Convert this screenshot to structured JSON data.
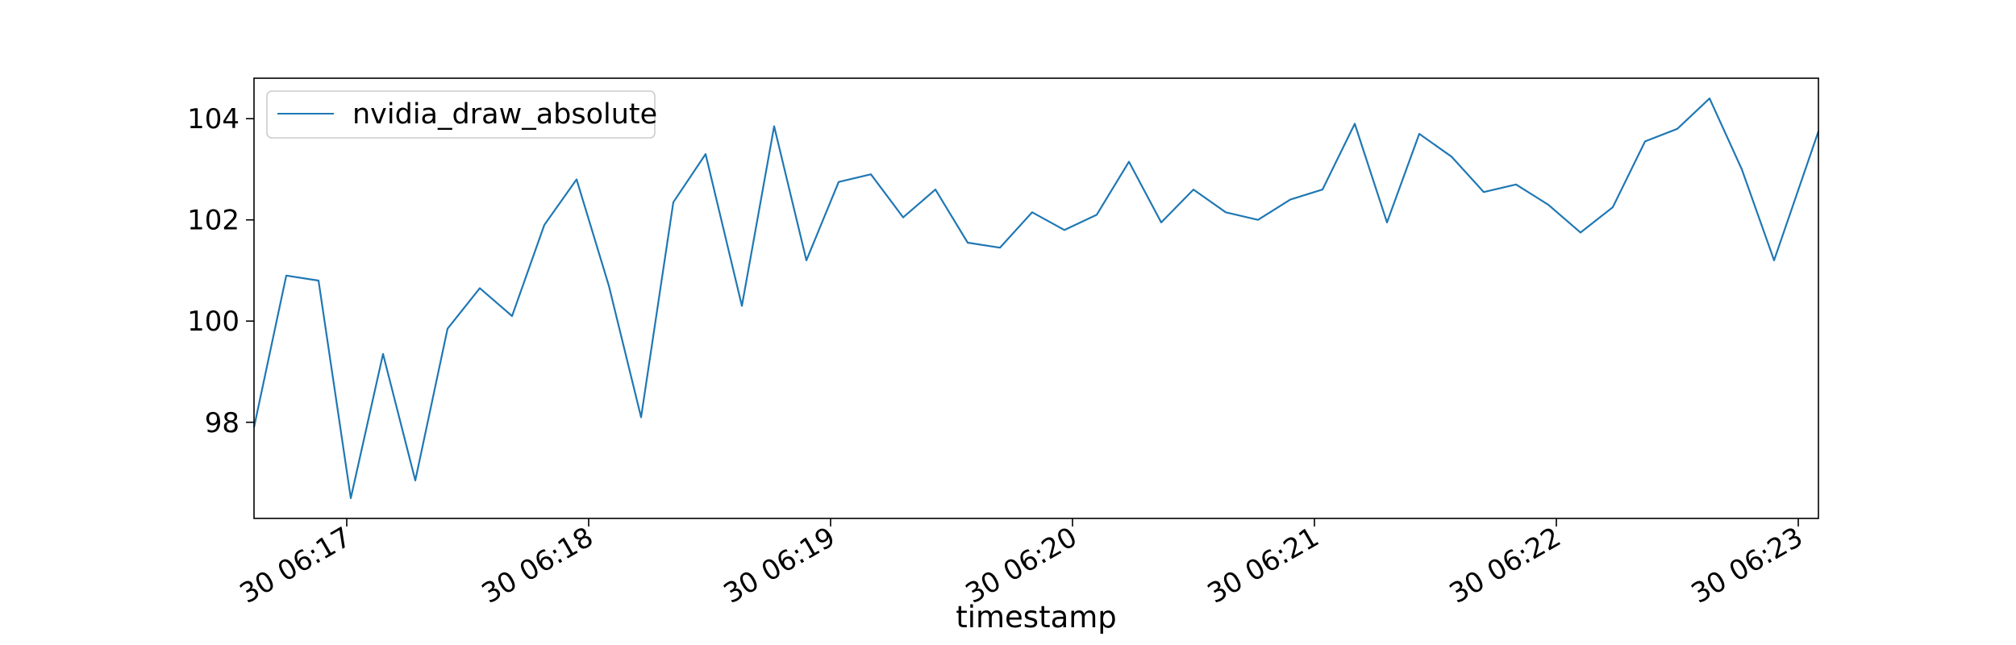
{
  "chart_data": {
    "type": "line",
    "title": "",
    "xlabel": "timestamp",
    "ylabel": "",
    "x_tick_labels": [
      "30 06:17",
      "30 06:18",
      "30 06:19",
      "30 06:20",
      "30 06:21",
      "30 06:22",
      "30 06:23"
    ],
    "x_ticks": [
      "06:17:00",
      "06:18:00",
      "06:19:00",
      "06:20:00",
      "06:21:00",
      "06:22:00",
      "06:23:00"
    ],
    "xlim": [
      "06:16:37",
      "06:23:05"
    ],
    "y_ticks": [
      98,
      100,
      102,
      104
    ],
    "ylim": [
      96.1,
      104.8
    ],
    "grid": false,
    "legend_position": "upper-left",
    "colors": {
      "line": "#1f77b4",
      "legend_border": "#cccccc"
    },
    "series": [
      {
        "name": "nvidia_draw_absolute",
        "x": [
          "06:16:37",
          "06:16:45",
          "06:16:53",
          "06:17:01",
          "06:17:09",
          "06:17:17",
          "06:17:25",
          "06:17:33",
          "06:17:41",
          "06:17:49",
          "06:17:57",
          "06:18:05",
          "06:18:13",
          "06:18:21",
          "06:18:29",
          "06:18:38",
          "06:18:46",
          "06:18:54",
          "06:19:02",
          "06:19:10",
          "06:19:18",
          "06:19:26",
          "06:19:34",
          "06:19:42",
          "06:19:50",
          "06:19:58",
          "06:20:06",
          "06:20:14",
          "06:20:22",
          "06:20:30",
          "06:20:38",
          "06:20:46",
          "06:20:54",
          "06:21:02",
          "06:21:10",
          "06:21:18",
          "06:21:26",
          "06:21:34",
          "06:21:42",
          "06:21:50",
          "06:21:58",
          "06:22:06",
          "06:22:14",
          "06:22:22",
          "06:22:30",
          "06:22:38",
          "06:22:46",
          "06:22:54",
          "06:23:05"
        ],
        "values": [
          97.9,
          100.9,
          100.8,
          96.5,
          99.35,
          96.85,
          99.85,
          100.65,
          100.1,
          101.9,
          102.8,
          100.7,
          98.1,
          102.35,
          103.3,
          100.3,
          103.85,
          101.2,
          102.75,
          102.9,
          102.05,
          102.6,
          101.55,
          101.45,
          102.15,
          101.8,
          102.1,
          103.15,
          101.95,
          102.6,
          102.15,
          102.0,
          102.4,
          102.6,
          103.9,
          101.95,
          103.7,
          103.25,
          102.55,
          102.7,
          102.3,
          101.75,
          102.25,
          103.55,
          103.8,
          104.4,
          103.0,
          101.2,
          103.75
        ]
      }
    ]
  }
}
